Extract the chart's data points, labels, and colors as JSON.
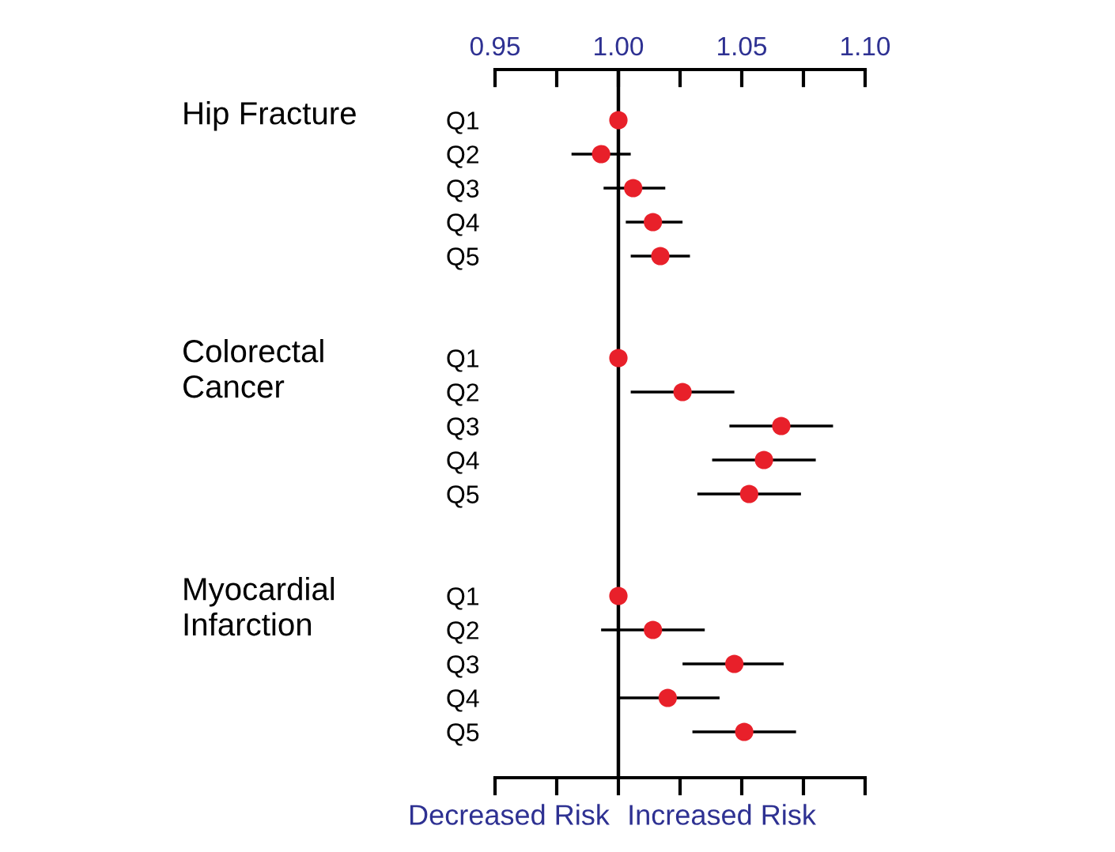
{
  "chart_data": {
    "type": "scatter",
    "orientation": "horizontal",
    "categories": [
      "Q1",
      "Q2",
      "Q3",
      "Q4",
      "Q5",
      null,
      null,
      "Q1",
      "Q2",
      "Q3",
      "Q4",
      "Q5",
      null,
      null,
      "Q1",
      "Q2",
      "Q3",
      "Q4",
      "Q5"
    ],
    "values": [
      1.0,
      0.993,
      1.006,
      1.014,
      1.017,
      null,
      null,
      1.0,
      1.026,
      1.066,
      1.059,
      1.053,
      null,
      null,
      1.0,
      1.014,
      1.047,
      1.02,
      1.051
    ],
    "errors": [
      null,
      [
        0.981,
        1.005
      ],
      [
        0.994,
        1.019
      ],
      [
        1.003,
        1.026
      ],
      [
        1.005,
        1.029
      ],
      null,
      null,
      null,
      [
        1.005,
        1.047
      ],
      [
        1.045,
        1.087
      ],
      [
        1.038,
        1.08
      ],
      [
        1.032,
        1.074
      ],
      null,
      null,
      null,
      [
        0.993,
        1.035
      ],
      [
        1.026,
        1.067
      ],
      [
        1.0,
        1.041
      ],
      [
        1.03,
        1.072
      ]
    ],
    "color": "#e8202a",
    "marker": "circle",
    "grid": false,
    "legend": false,
    "xlim": [
      0.95,
      1.1
    ],
    "xticks": [
      0.95,
      {
        "value": 0.975,
        "label": null
      },
      {
        "value": 1.0,
        "label": "1.00"
      },
      {
        "value": 1.025,
        "label": null
      },
      1.05,
      {
        "value": 1.075,
        "label": null
      },
      {
        "value": 1.1,
        "label": "1.10"
      }
    ],
    "ref_lines": [
      {
        "axis": "x",
        "value": 1.0,
        "color": "#000000"
      }
    ],
    "annotations": [
      "Hip Fracture",
      "Colorectal\nCancer",
      "Myocardial\nInfarction",
      "Decreased Risk",
      "Increased Risk"
    ]
  }
}
